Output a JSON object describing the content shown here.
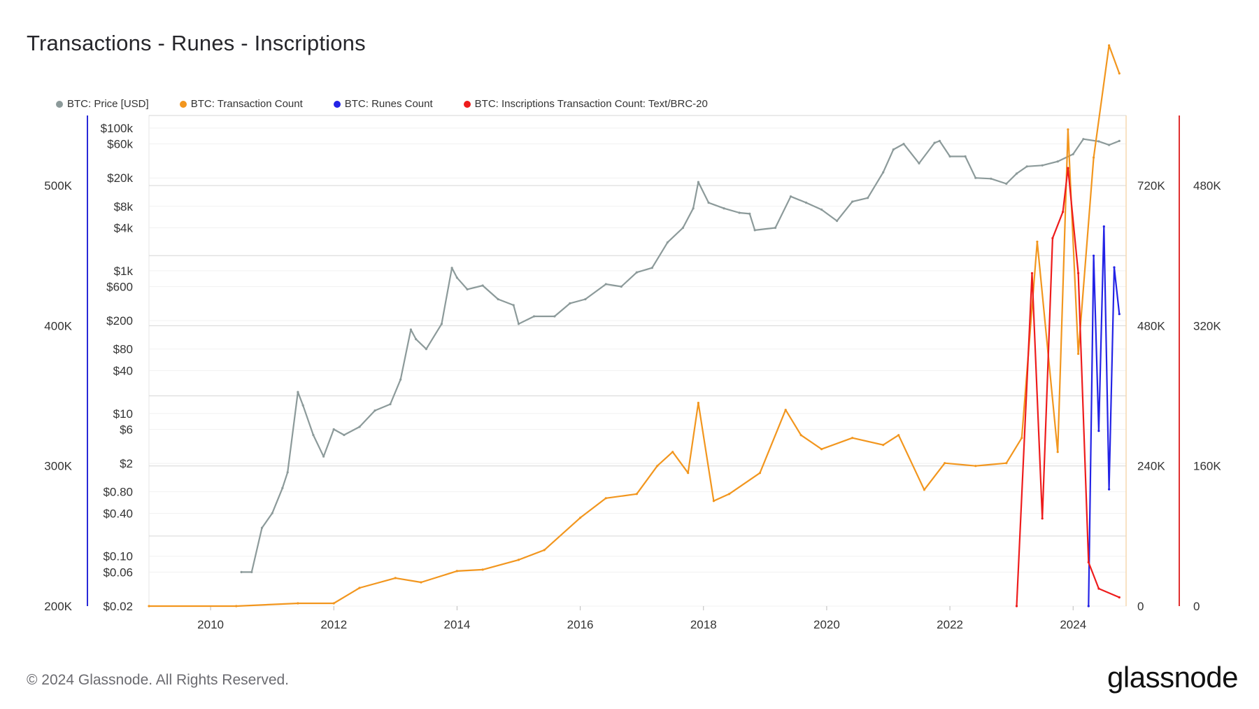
{
  "title": "Transactions - Runes - Inscriptions",
  "footer": "© 2024 Glassnode. All Rights Reserved.",
  "brand": "glassnode",
  "legend": [
    {
      "label": "BTC: Price [USD]",
      "color": "#8c9a9a"
    },
    {
      "label": "BTC: Transaction Count",
      "color": "#f2961e"
    },
    {
      "label": "BTC: Runes Count",
      "color": "#2323e6"
    },
    {
      "label": "BTC: Inscriptions Transaction Count: Text/BRC-20",
      "color": "#ee1c1c"
    }
  ],
  "chart_data": {
    "type": "line",
    "title": "Transactions - Runes - Inscriptions",
    "x_ticks": [
      "2010",
      "2012",
      "2014",
      "2016",
      "2018",
      "2020",
      "2022",
      "2024"
    ],
    "axes": {
      "tx_left": {
        "ticks": [
          "500K",
          "400K",
          "300K",
          "200K"
        ],
        "range": [
          200000,
          550000
        ],
        "color": "#2a2ad8"
      },
      "price": {
        "ticks": [
          "$100k",
          "$60k",
          "$20k",
          "$8k",
          "$4k",
          "$1k",
          "$600",
          "$200",
          "$80",
          "$40",
          "$10",
          "$6",
          "$2",
          "$0.80",
          "$0.40",
          "$0.10",
          "$0.06",
          "$0.02"
        ],
        "scale": "log",
        "range": [
          0.02,
          150000
        ]
      },
      "runes_right": {
        "ticks": [
          "720K",
          "480K",
          "240K",
          "0"
        ],
        "range": [
          0,
          840000
        ]
      },
      "inscriptions_right": {
        "ticks": [
          "480K",
          "320K",
          "160K",
          "0"
        ],
        "range": [
          0,
          560000
        ]
      }
    },
    "grid": true,
    "legend_position": "top-left",
    "series": [
      {
        "name": "BTC: Price [USD]",
        "color": "#8c9a9a",
        "axis": "price",
        "points": [
          [
            "2010-07",
            0.06
          ],
          [
            "2010-09",
            0.06
          ],
          [
            "2010-11",
            0.25
          ],
          [
            "2011-01",
            0.4
          ],
          [
            "2011-03",
            0.9
          ],
          [
            "2011-04",
            1.5
          ],
          [
            "2011-06",
            20
          ],
          [
            "2011-07",
            13
          ],
          [
            "2011-09",
            5
          ],
          [
            "2011-11",
            2.5
          ],
          [
            "2012-01",
            6
          ],
          [
            "2012-03",
            5
          ],
          [
            "2012-06",
            6.5
          ],
          [
            "2012-09",
            11
          ],
          [
            "2012-12",
            13.5
          ],
          [
            "2013-02",
            30
          ],
          [
            "2013-04",
            150
          ],
          [
            "2013-05",
            110
          ],
          [
            "2013-07",
            80
          ],
          [
            "2013-10",
            180
          ],
          [
            "2013-12",
            1100
          ],
          [
            "2014-01",
            800
          ],
          [
            "2014-03",
            550
          ],
          [
            "2014-06",
            620
          ],
          [
            "2014-09",
            400
          ],
          [
            "2014-12",
            330
          ],
          [
            "2015-01",
            180
          ],
          [
            "2015-04",
            230
          ],
          [
            "2015-08",
            230
          ],
          [
            "2015-11",
            350
          ],
          [
            "2016-02",
            400
          ],
          [
            "2016-06",
            650
          ],
          [
            "2016-09",
            600
          ],
          [
            "2016-12",
            950
          ],
          [
            "2017-03",
            1100
          ],
          [
            "2017-06",
            2500
          ],
          [
            "2017-09",
            4000
          ],
          [
            "2017-11",
            7500
          ],
          [
            "2017-12",
            17500
          ],
          [
            "2018-02",
            9000
          ],
          [
            "2018-05",
            7500
          ],
          [
            "2018-08",
            6500
          ],
          [
            "2018-10",
            6300
          ],
          [
            "2018-11",
            3700
          ],
          [
            "2019-03",
            4000
          ],
          [
            "2019-06",
            11000
          ],
          [
            "2019-09",
            9000
          ],
          [
            "2019-12",
            7200
          ],
          [
            "2020-03",
            5000
          ],
          [
            "2020-06",
            9300
          ],
          [
            "2020-09",
            10500
          ],
          [
            "2020-12",
            24000
          ],
          [
            "2021-02",
            50000
          ],
          [
            "2021-04",
            60000
          ],
          [
            "2021-07",
            32000
          ],
          [
            "2021-10",
            62000
          ],
          [
            "2021-11",
            66000
          ],
          [
            "2022-01",
            40000
          ],
          [
            "2022-04",
            40000
          ],
          [
            "2022-06",
            20000
          ],
          [
            "2022-09",
            19500
          ],
          [
            "2022-12",
            16600
          ],
          [
            "2023-02",
            23000
          ],
          [
            "2023-04",
            29000
          ],
          [
            "2023-07",
            30000
          ],
          [
            "2023-10",
            34000
          ],
          [
            "2024-01",
            43000
          ],
          [
            "2024-03",
            70000
          ],
          [
            "2024-06",
            65000
          ],
          [
            "2024-08",
            58000
          ],
          [
            "2024-10",
            66000
          ]
        ]
      },
      {
        "name": "BTC: Transaction Count",
        "color": "#f2961e",
        "axis": "tx_left",
        "points": [
          [
            "2009-01",
            200000
          ],
          [
            "2010-06",
            200000
          ],
          [
            "2011-06",
            202000
          ],
          [
            "2012-01",
            202000
          ],
          [
            "2012-06",
            213000
          ],
          [
            "2013-01",
            220000
          ],
          [
            "2013-06",
            217000
          ],
          [
            "2014-01",
            225000
          ],
          [
            "2014-06",
            226000
          ],
          [
            "2015-01",
            233000
          ],
          [
            "2015-06",
            240000
          ],
          [
            "2016-01",
            263000
          ],
          [
            "2016-06",
            277000
          ],
          [
            "2016-12",
            280000
          ],
          [
            "2017-04",
            300000
          ],
          [
            "2017-07",
            310000
          ],
          [
            "2017-10",
            295000
          ],
          [
            "2017-12",
            345000
          ],
          [
            "2018-03",
            275000
          ],
          [
            "2018-06",
            280000
          ],
          [
            "2018-12",
            295000
          ],
          [
            "2019-05",
            340000
          ],
          [
            "2019-08",
            322000
          ],
          [
            "2019-12",
            312000
          ],
          [
            "2020-06",
            320000
          ],
          [
            "2020-12",
            315000
          ],
          [
            "2021-03",
            322000
          ],
          [
            "2021-08",
            283000
          ],
          [
            "2021-12",
            302000
          ],
          [
            "2022-06",
            300000
          ],
          [
            "2022-12",
            302000
          ],
          [
            "2023-03",
            320000
          ],
          [
            "2023-06",
            460000
          ],
          [
            "2023-10",
            310000
          ],
          [
            "2023-12",
            540000
          ],
          [
            "2024-02",
            380000
          ],
          [
            "2024-05",
            520000
          ],
          [
            "2024-08",
            600000
          ],
          [
            "2024-10",
            580000
          ]
        ]
      },
      {
        "name": "BTC: Runes Count",
        "color": "#2323e6",
        "axis": "runes_right",
        "points": [
          [
            "2024-04",
            0
          ],
          [
            "2024-05",
            600000
          ],
          [
            "2024-06",
            300000
          ],
          [
            "2024-07",
            650000
          ],
          [
            "2024-08",
            200000
          ],
          [
            "2024-09",
            580000
          ],
          [
            "2024-10",
            500000
          ]
        ]
      },
      {
        "name": "BTC: Inscriptions Transaction Count: Text/BRC-20",
        "color": "#ee1c1c",
        "axis": "inscriptions_right",
        "points": [
          [
            "2023-02",
            0
          ],
          [
            "2023-05",
            380000
          ],
          [
            "2023-07",
            100000
          ],
          [
            "2023-09",
            420000
          ],
          [
            "2023-11",
            450000
          ],
          [
            "2023-12",
            500000
          ],
          [
            "2024-02",
            380000
          ],
          [
            "2024-04",
            50000
          ],
          [
            "2024-06",
            20000
          ],
          [
            "2024-10",
            10000
          ]
        ]
      }
    ]
  }
}
